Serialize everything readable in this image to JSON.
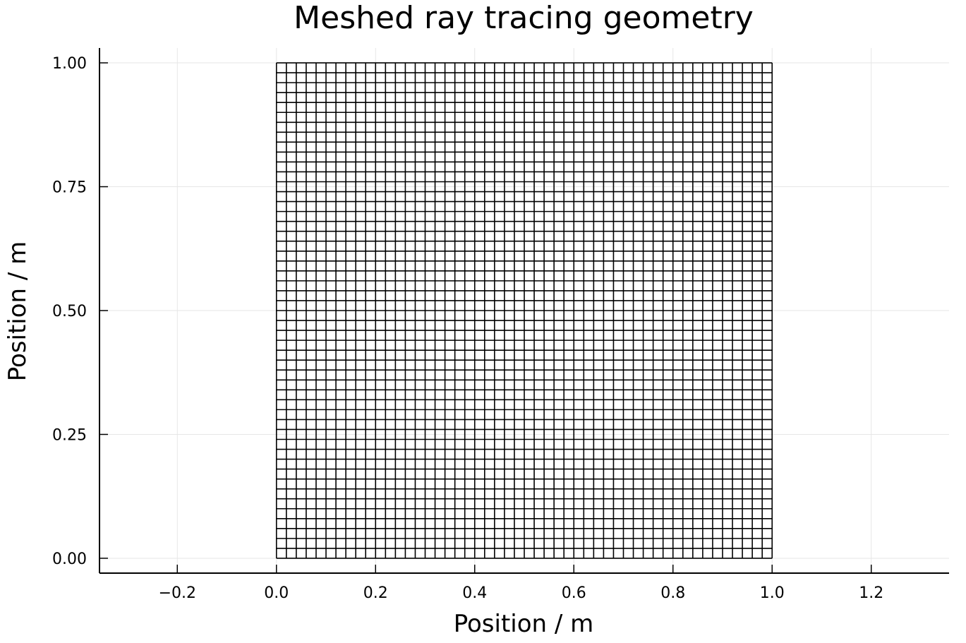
{
  "chart_data": {
    "type": "mesh",
    "title": "Meshed ray tracing geometry",
    "xlabel": "Position / m",
    "ylabel": "Position / m",
    "xlim": [
      -0.357,
      1.357
    ],
    "ylim": [
      -0.03,
      1.03
    ],
    "xticks": [
      -0.2,
      0.0,
      0.2,
      0.4,
      0.6,
      0.8,
      1.0,
      1.2
    ],
    "xtick_labels": [
      "−0.2",
      "0.0",
      "0.2",
      "0.4",
      "0.6",
      "0.8",
      "1.0",
      "1.2"
    ],
    "yticks": [
      0.0,
      0.25,
      0.5,
      0.75,
      1.0
    ],
    "ytick_labels": [
      "0.00",
      "0.25",
      "0.50",
      "0.75",
      "1.00"
    ],
    "grid": true,
    "mesh": {
      "x_range": [
        0.0,
        1.0
      ],
      "y_range": [
        0.0,
        1.0
      ],
      "cells_x": 50,
      "cells_y": 50,
      "line_color": "#000000"
    }
  }
}
